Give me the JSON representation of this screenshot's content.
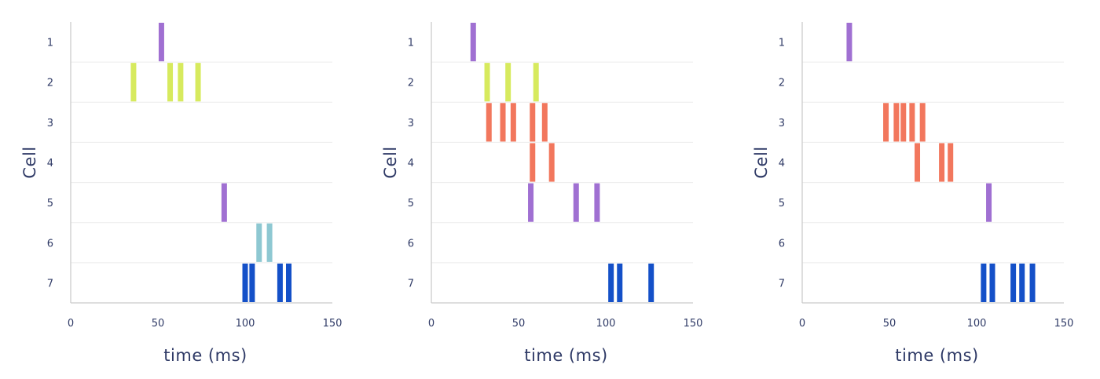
{
  "colors": {
    "axis": "#c9c9c9",
    "row_divider": "#ececec",
    "text": "#2f3a66"
  },
  "chart_data": [
    {
      "type": "raster",
      "xlabel": "time (ms)",
      "ylabel": "Cell",
      "xlim": [
        0,
        150
      ],
      "xticks": [
        "0",
        "50",
        "100",
        "150"
      ],
      "cells": [
        "1",
        "2",
        "3",
        "4",
        "5",
        "6",
        "7"
      ],
      "spikes": [
        {
          "cell": 1,
          "times": [
            52
          ],
          "color": "#a070d2"
        },
        {
          "cell": 2,
          "times": [
            36,
            57,
            63,
            73
          ],
          "color": "#d7ea5e"
        },
        {
          "cell": 5,
          "times": [
            88
          ],
          "color": "#a070d2"
        },
        {
          "cell": 6,
          "times": [
            108,
            114
          ],
          "color": "#8ec8d2"
        },
        {
          "cell": 7,
          "times": [
            100,
            104,
            120,
            125
          ],
          "color": "#1450c8"
        }
      ]
    },
    {
      "type": "raster",
      "xlabel": "time (ms)",
      "ylabel": "Cell",
      "xlim": [
        0,
        150
      ],
      "xticks": [
        "0",
        "50",
        "100",
        "150"
      ],
      "cells": [
        "1",
        "2",
        "3",
        "4",
        "5",
        "6",
        "7"
      ],
      "spikes": [
        {
          "cell": 1,
          "times": [
            24
          ],
          "color": "#a070d2"
        },
        {
          "cell": 2,
          "times": [
            32,
            44,
            60
          ],
          "color": "#d7ea5e"
        },
        {
          "cell": 3,
          "times": [
            33,
            41,
            47,
            58,
            65
          ],
          "color": "#f2775d"
        },
        {
          "cell": 4,
          "times": [
            58,
            69
          ],
          "color": "#f2775d"
        },
        {
          "cell": 5,
          "times": [
            57,
            83,
            95
          ],
          "color": "#a070d2"
        },
        {
          "cell": 7,
          "times": [
            103,
            108,
            126
          ],
          "color": "#1450c8"
        }
      ]
    },
    {
      "type": "raster",
      "xlabel": "time (ms)",
      "ylabel": "Cell",
      "xlim": [
        0,
        150
      ],
      "xticks": [
        "0",
        "50",
        "100",
        "150"
      ],
      "cells": [
        "1",
        "2",
        "3",
        "4",
        "5",
        "6",
        "7"
      ],
      "spikes": [
        {
          "cell": 1,
          "times": [
            27
          ],
          "color": "#a070d2"
        },
        {
          "cell": 3,
          "times": [
            48,
            54,
            58,
            63,
            69
          ],
          "color": "#f2775d"
        },
        {
          "cell": 4,
          "times": [
            66,
            80,
            85
          ],
          "color": "#f2775d"
        },
        {
          "cell": 5,
          "times": [
            107
          ],
          "color": "#a070d2"
        },
        {
          "cell": 7,
          "times": [
            104,
            109,
            121,
            126,
            132
          ],
          "color": "#1450c8"
        }
      ]
    }
  ]
}
